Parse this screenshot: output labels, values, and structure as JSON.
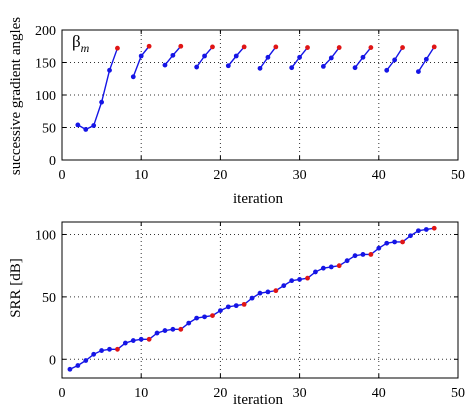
{
  "chart_data": [
    {
      "type": "line",
      "title": "",
      "xlabel": "iteration",
      "ylabel": "successive gradient angles",
      "annotation": "β_m",
      "xlim": [
        0,
        50
      ],
      "ylim": [
        0,
        200
      ],
      "xticks": [
        "0",
        "10",
        "20",
        "30",
        "40",
        "50"
      ],
      "yticks": [
        "0",
        "50",
        "100",
        "150",
        "200"
      ],
      "grid": true,
      "line_color": "#1515e6",
      "restart_marker_color": "#e01515",
      "segments": [
        {
          "x": [
            2,
            3,
            4,
            5,
            6,
            7
          ],
          "y": [
            54,
            47,
            53,
            89,
            138,
            172
          ]
        },
        {
          "x": [
            9,
            10,
            11
          ],
          "y": [
            128,
            160,
            175
          ]
        },
        {
          "x": [
            13,
            14,
            15
          ],
          "y": [
            146,
            161,
            175
          ]
        },
        {
          "x": [
            17,
            18,
            19
          ],
          "y": [
            143,
            160,
            174
          ]
        },
        {
          "x": [
            21,
            22,
            23
          ],
          "y": [
            145,
            160,
            174
          ]
        },
        {
          "x": [
            25,
            26,
            27
          ],
          "y": [
            141,
            158,
            174
          ]
        },
        {
          "x": [
            29,
            30,
            31
          ],
          "y": [
            142,
            158,
            173
          ]
        },
        {
          "x": [
            33,
            34,
            35
          ],
          "y": [
            144,
            157,
            173
          ]
        },
        {
          "x": [
            37,
            38,
            39
          ],
          "y": [
            142,
            158,
            173
          ]
        },
        {
          "x": [
            41,
            42,
            43
          ],
          "y": [
            138,
            154,
            173
          ]
        },
        {
          "x": [
            45,
            46,
            47
          ],
          "y": [
            136,
            155,
            174
          ]
        }
      ]
    },
    {
      "type": "line",
      "title": "",
      "xlabel": "iteration",
      "ylabel": "SRR [dB]",
      "xlim": [
        0,
        50
      ],
      "ylim": [
        -15,
        110
      ],
      "xticks": [
        "0",
        "10",
        "20",
        "30",
        "40",
        "50"
      ],
      "yticks": [
        "0",
        "50",
        "100"
      ],
      "ytick_values": [
        0,
        50,
        100
      ],
      "grid": true,
      "line_color": "#1515e6",
      "restart_marker_color": "#e01515",
      "x": [
        1,
        2,
        3,
        4,
        5,
        6,
        7,
        8,
        9,
        10,
        11,
        12,
        13,
        14,
        15,
        16,
        17,
        18,
        19,
        20,
        21,
        22,
        23,
        24,
        25,
        26,
        27,
        28,
        29,
        30,
        31,
        32,
        33,
        34,
        35,
        36,
        37,
        38,
        39,
        40,
        41,
        42,
        43,
        44,
        45,
        46,
        47
      ],
      "y": [
        -8,
        -5,
        -1,
        4,
        7,
        8,
        8,
        13,
        15,
        16,
        16,
        21,
        23,
        24,
        24,
        29,
        33,
        34,
        35,
        39,
        42,
        43,
        44,
        49,
        53,
        54,
        55,
        59,
        63,
        64,
        65,
        70,
        73,
        74,
        75,
        79,
        83,
        84,
        84,
        89,
        93,
        94,
        94,
        99,
        103,
        104,
        105
      ],
      "restart_iterations": [
        7,
        11,
        15,
        19,
        23,
        27,
        31,
        35,
        39,
        43,
        47
      ]
    }
  ]
}
